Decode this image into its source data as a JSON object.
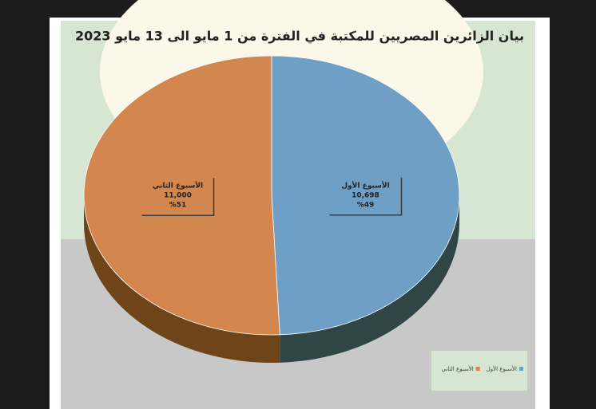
{
  "chart_data": {
    "type": "pie",
    "title": "بيان الزائرين المصريين للمكتبة في الفترة من 1 مايو الى 13 مايو 2023",
    "categories": [
      "الأسبوع الأول",
      "الأسبوع الثاني"
    ],
    "values": [
      10698,
      11000
    ],
    "value_labels": [
      "10,698",
      "11,000"
    ],
    "percent_labels": [
      "%49",
      "%51"
    ],
    "colors": [
      "#6f9fc4",
      "#d3864d"
    ],
    "side_colors": [
      "#2f4546",
      "#6e4418"
    ],
    "legend": "bottom-right"
  }
}
